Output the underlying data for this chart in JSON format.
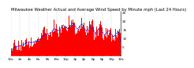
{
  "title": "Milwaukee Weather Actual and Average Wind Speed by Minute mph (Last 24 Hours)",
  "n_points": 1440,
  "bar_color": "#ff0000",
  "avg_color": "#0000ff",
  "background_color": "#ffffff",
  "plot_bg_color": "#ffffff",
  "grid_color": "#999999",
  "ylim": [
    0,
    25
  ],
  "yticks": [
    5,
    10,
    15,
    20,
    25
  ],
  "title_fontsize": 3.8,
  "tick_fontsize": 3.0,
  "seed": 42
}
